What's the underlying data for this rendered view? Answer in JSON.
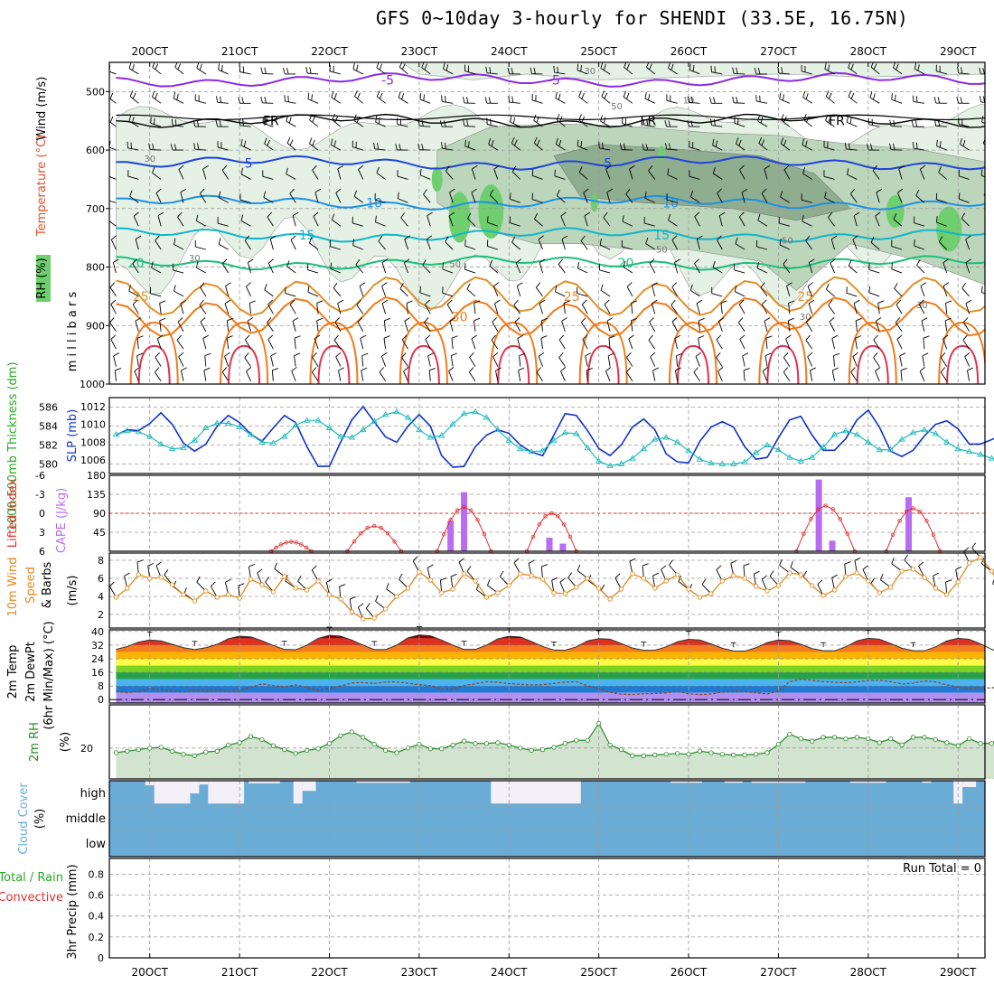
{
  "title": "GFS 0~10day 3-hourly for SHENDI (33.5E, 16.75N)",
  "colors": {
    "rh_light": "#e4f1e4",
    "rh_mid": "#bcd6bc",
    "rh_dark": "#8fae8f",
    "rh_bright": "#6fcf6f",
    "temp_m5": "#8a2be2",
    "temp_fr": "#000000",
    "temp_5": "#1f44d8",
    "temp_10": "#1e90e6",
    "temp_15": "#12b5c8",
    "temp_20": "#1bbf7a",
    "temp_25": "#e0902a",
    "temp_30": "#f07a1a",
    "temp_35": "#e0304a",
    "slp": "#1033c8",
    "thickness": "#22bbbb",
    "cape": "#b86cf0",
    "lifted": "#e03030",
    "wind_speed": "#e08a20",
    "rh2m": "#2a8a2a",
    "cloud": "#6aacd6",
    "precip_total": "#22aa22",
    "precip_conv": "#e03030"
  },
  "chart_data": [
    {
      "type": "heatmap",
      "name": "upper-air",
      "ylabel_parts": [
        "RH (%)",
        "Temperature (°C)",
        "Wind (m/s)"
      ],
      "yunit": "millibars",
      "y_ticks": [
        500,
        600,
        700,
        800,
        900,
        1000
      ],
      "ylim": [
        1000,
        450
      ],
      "x_ticks": [
        "20OCT",
        "21OCT",
        "22OCT",
        "23OCT",
        "24OCT",
        "25OCT",
        "26OCT",
        "27OCT",
        "28OCT",
        "29OCT"
      ],
      "xlim_days": [
        19.55,
        29.3
      ],
      "isotherms": [
        {
          "label": "-5",
          "level": 480
        },
        {
          "label": "FR",
          "level": 550
        },
        {
          "label": "5",
          "level": 622
        },
        {
          "label": "10",
          "level": 690
        },
        {
          "label": "15",
          "level": 745
        },
        {
          "label": "20",
          "level": 793
        },
        {
          "label": "25",
          "level": 850
        },
        {
          "label": "30",
          "level": 885
        }
      ],
      "rh_contour_labels": [
        "30",
        "50",
        "30",
        "30",
        "10",
        "50",
        "30",
        "50",
        "50",
        "30"
      ]
    },
    {
      "type": "line",
      "name": "slp-thickness",
      "ylabel_left": "1000-500mb Thickness (dm)",
      "ylabel_right": "SLP (mb)",
      "left_ticks": [
        580,
        582,
        584,
        586
      ],
      "left_lim": [
        579,
        587
      ],
      "right_ticks": [
        1006,
        1008,
        1010,
        1012
      ],
      "right_lim": [
        1004.5,
        1013
      ],
      "series": [
        {
          "name": "SLP (mb)",
          "values": [
            1008.8,
            1009.4,
            1009.3,
            1010.1,
            1011.3,
            1010.0,
            1007.9,
            1007.0,
            1007.8,
            1009.8,
            1011.0,
            1010.2,
            1008.9,
            1008.1,
            1009.6,
            1011.0,
            1010.2,
            1007.5,
            1005.3,
            1005.3,
            1008.0,
            1010.5,
            1012.0,
            1010.3,
            1008.6,
            1008.0,
            1009.8,
            1011.1,
            1009.8,
            1006.5,
            1005.2,
            1005.3,
            1007.5,
            1008.8,
            1009.4,
            1009.0,
            1007.7,
            1006.9,
            1006.5,
            1008.8,
            1011.2,
            1011.0,
            1009.3,
            1007.3,
            1006.5,
            1007.7,
            1009.7,
            1010.6,
            1009.4,
            1006.7,
            1005.8,
            1005.7,
            1008.1,
            1009.7,
            1010.3,
            1009.7,
            1007.5,
            1006.1,
            1006.3,
            1008.5,
            1010.5,
            1010.9,
            1008.8,
            1007.1,
            1007.1,
            1008.4,
            1010.5,
            1011.6,
            1009.7,
            1007.0,
            1006.4,
            1007.1,
            1008.7,
            1010.0,
            1010.4,
            1009.5,
            1007.8,
            1007.8,
            1008.3,
            1008.9
          ]
        },
        {
          "name": "1000-500mb Thickness (dm)",
          "values": [
            583.1,
            583.5,
            583.4,
            582.9,
            582.1,
            581.6,
            581.7,
            582.5,
            583.8,
            584.3,
            584.3,
            583.9,
            583.1,
            582.3,
            582.2,
            582.9,
            584.1,
            584.6,
            584.6,
            583.8,
            582.9,
            582.8,
            583.6,
            584.5,
            585.2,
            585.5,
            584.9,
            583.6,
            582.8,
            583.0,
            584.2,
            585.3,
            585.5,
            584.9,
            583.6,
            582.5,
            581.6,
            581.3,
            581.4,
            582.5,
            583.3,
            583.2,
            581.7,
            580.3,
            579.8,
            580.0,
            580.6,
            581.6,
            582.6,
            582.8,
            582.3,
            581.4,
            580.5,
            580.1,
            580.0,
            580.0,
            580.2,
            581.2,
            582.0,
            581.5,
            580.7,
            580.3,
            580.7,
            581.8,
            583.1,
            583.5,
            583.1,
            582.3,
            581.5,
            581.5,
            582.6,
            583.3,
            583.6,
            583.2,
            582.3,
            581.6,
            581.3,
            581.0,
            580.6,
            580.4
          ]
        }
      ]
    },
    {
      "type": "bar",
      "name": "cape-lifted-index",
      "ylabel_left": "Lifted Index",
      "ylabel_right": "CAPE (J/kg)",
      "left_ticks": [
        "-6",
        "-3",
        "0",
        "3",
        "6"
      ],
      "right_ticks": [
        45,
        90,
        135,
        180
      ],
      "cape_bars": [
        {
          "day": 23.35,
          "value": 72
        },
        {
          "day": 23.5,
          "value": 140
        },
        {
          "day": 24.45,
          "value": 32
        },
        {
          "day": 24.6,
          "value": 18
        },
        {
          "day": 27.45,
          "value": 170
        },
        {
          "day": 27.6,
          "value": 25
        },
        {
          "day": 28.45,
          "value": 128
        }
      ],
      "lifted_index_arcs": [
        {
          "start": 21.35,
          "end": 21.8,
          "peak": 4.5
        },
        {
          "start": 22.2,
          "end": 22.8,
          "peak": 2.0
        },
        {
          "start": 23.2,
          "end": 23.8,
          "peak": -1.0
        },
        {
          "start": 24.2,
          "end": 24.75,
          "peak": 0.0
        },
        {
          "start": 27.2,
          "end": 27.85,
          "peak": -1.2
        },
        {
          "start": 28.2,
          "end": 28.8,
          "peak": -0.8
        }
      ]
    },
    {
      "type": "line",
      "name": "wind-10m",
      "ylabel_parts": [
        "10m Wind",
        "Speed",
        "& Barbs",
        "(m/s)"
      ],
      "y_ticks": [
        2,
        4,
        6,
        8
      ],
      "ylim": [
        0.5,
        8.8
      ],
      "series": [
        {
          "name": "10m Wind Speed",
          "values": [
            3.9,
            4.9,
            6.4,
            6.0,
            6.1,
            5.3,
            4.2,
            3.5,
            4.6,
            3.9,
            4.2,
            3.8,
            5.9,
            5.3,
            4.5,
            6.2,
            4.9,
            4.7,
            5.7,
            4.2,
            3.7,
            2.3,
            1.5,
            1.6,
            2.6,
            4.0,
            4.9,
            6.7,
            5.8,
            4.4,
            4.8,
            6.5,
            5.7,
            3.9,
            4.4,
            5.2,
            6.5,
            6.3,
            5.9,
            4.4,
            4.3,
            5.0,
            6.0,
            4.9,
            3.7,
            4.8,
            6.5,
            6.0,
            4.9,
            5.7,
            6.4,
            4.8,
            3.9,
            4.3,
            5.7,
            6.3,
            6.0,
            5.1,
            4.6,
            5.2,
            6.6,
            6.4,
            5.2,
            4.1,
            4.7,
            6.2,
            6.6,
            5.7,
            4.4,
            5.0,
            6.8,
            7.0,
            6.1,
            4.9,
            4.2,
            5.6,
            7.7,
            8.3,
            6.8,
            4.6
          ]
        }
      ]
    },
    {
      "type": "area",
      "name": "temperature-2m",
      "ylabel_parts": [
        "2m Temp",
        "2m DewPt",
        "(6hr Min/Max) (°C)"
      ],
      "y_ticks": [
        0,
        8,
        16,
        24,
        32,
        40
      ],
      "ylim": [
        -2,
        41
      ],
      "temp_bands": [
        {
          "min": 36,
          "color": "#8b0000"
        },
        {
          "min": 32,
          "color": "#e0301e"
        },
        {
          "min": 28,
          "color": "#f47c20"
        },
        {
          "min": 24,
          "color": "#f7b500"
        },
        {
          "min": 20,
          "color": "#fff94a"
        },
        {
          "min": 16,
          "color": "#7ed321"
        },
        {
          "min": 12,
          "color": "#25a24a"
        },
        {
          "min": 8,
          "color": "#4bb3f0"
        },
        {
          "min": 4,
          "color": "#1f7ad4"
        },
        {
          "min": 0,
          "color": "#b28ff0"
        }
      ],
      "series": [
        {
          "name": "2m Temp",
          "values": [
            29.5,
            31.2,
            33.8,
            35.0,
            34.5,
            32.5,
            30.5,
            29.4,
            30.5,
            32.5,
            35.8,
            37.3,
            36.8,
            34.6,
            31.8,
            29.5,
            29.3,
            32.0,
            36.0,
            37.8,
            37.3,
            35.0,
            32.0,
            29.4,
            29.4,
            32.0,
            36.3,
            38.0,
            37.5,
            35.0,
            32.0,
            29.5,
            29.5,
            32.0,
            35.7,
            37.2,
            36.8,
            34.2,
            31.2,
            29.1,
            29.0,
            31.0,
            34.5,
            35.8,
            35.5,
            33.0,
            30.3,
            29.0,
            29.0,
            31.0,
            34.0,
            35.4,
            35.0,
            32.7,
            30.2,
            28.6,
            28.5,
            30.5,
            33.5,
            35.0,
            34.6,
            32.5,
            30.0,
            28.7,
            28.7,
            31.0,
            34.5,
            36.0,
            35.5,
            33.0,
            30.2,
            28.7,
            28.7,
            31.0,
            34.5,
            36.0,
            35.4,
            32.8,
            29.5,
            27.5
          ]
        },
        {
          "name": "2m DewPt",
          "values": [
            5.0,
            4.0,
            4.8,
            6.3,
            5.8,
            5.0,
            4.5,
            5.5,
            5.0,
            5.5,
            4.8,
            5.2,
            7.2,
            9.3,
            8.2,
            7.5,
            8.6,
            7.2,
            5.4,
            6.5,
            8.0,
            9.8,
            10.0,
            9.5,
            10.3,
            10.4,
            9.6,
            8.8,
            8.2,
            6.0,
            6.2,
            8.3,
            9.3,
            10.5,
            10.2,
            9.4,
            9.0,
            8.6,
            8.8,
            9.5,
            10.3,
            10.5,
            8.2,
            6.4,
            4.3,
            3.2,
            3.0,
            3.4,
            3.6,
            4.0,
            5.0,
            3.4,
            3.0,
            3.2,
            4.5,
            5.0,
            4.7,
            4.0,
            3.3,
            5.0,
            10.6,
            12.0,
            11.4,
            10.6,
            10.2,
            10.0,
            10.4,
            11.2,
            11.4,
            10.5,
            9.2,
            9.6,
            11.0,
            10.4,
            8.7,
            7.3,
            6.6,
            7.0,
            6.8,
            8.5
          ]
        }
      ]
    },
    {
      "type": "area",
      "name": "rh-2m",
      "ylabel_parts": [
        "2m RH",
        "(%)"
      ],
      "y_ticks": [
        20
      ],
      "ylim": [
        0,
        48
      ],
      "series": [
        {
          "name": "2m RH",
          "values": [
            17.0,
            18.0,
            19.0,
            20.0,
            20.5,
            18.0,
            16.0,
            15.0,
            17.5,
            18.0,
            22.0,
            23.5,
            27.5,
            25.5,
            21.5,
            19.0,
            16.5,
            18.5,
            19.5,
            23.0,
            28.0,
            30.5,
            27.0,
            22.5,
            18.5,
            17.0,
            20.0,
            22.5,
            19.5,
            19.5,
            22.0,
            24.5,
            23.0,
            23.0,
            23.5,
            22.0,
            20.0,
            18.5,
            19.0,
            20.5,
            23.0,
            25.0,
            25.0,
            36.0,
            22.0,
            19.0,
            15.0,
            15.0,
            15.5,
            16.0,
            16.5,
            16.0,
            18.0,
            17.0,
            16.0,
            15.5,
            15.5,
            16.0,
            17.0,
            22.5,
            29.0,
            26.0,
            24.5,
            27.0,
            27.0,
            26.0,
            27.0,
            26.0,
            23.5,
            26.0,
            22.0,
            27.0,
            27.0,
            25.5,
            23.5,
            21.5,
            26.0,
            23.0,
            23.0,
            27.5
          ]
        }
      ]
    },
    {
      "type": "area",
      "name": "cloud-cover",
      "ylabel_parts": [
        "Cloud Cover",
        "(%)"
      ],
      "y_ticks": [
        "high",
        "middle",
        "low"
      ],
      "gaps_high": [
        {
          "start": 19.95,
          "end": 20.05,
          "depth": 0.18
        },
        {
          "start": 20.05,
          "end": 20.45,
          "depth": 0.9
        },
        {
          "start": 20.45,
          "end": 20.55,
          "depth": 0.5
        },
        {
          "start": 20.55,
          "end": 20.65,
          "depth": 0.15
        },
        {
          "start": 20.65,
          "end": 21.05,
          "depth": 0.9
        },
        {
          "start": 21.1,
          "end": 21.45,
          "depth": 0.1
        },
        {
          "start": 21.6,
          "end": 21.7,
          "depth": 0.9
        },
        {
          "start": 21.7,
          "end": 21.85,
          "depth": 0.4
        },
        {
          "start": 22.3,
          "end": 22.9,
          "depth": 0.08
        },
        {
          "start": 23.8,
          "end": 24.8,
          "depth": 0.9
        },
        {
          "start": 25.8,
          "end": 26.15,
          "depth": 0.08
        },
        {
          "start": 26.4,
          "end": 26.6,
          "depth": 0.08
        },
        {
          "start": 26.7,
          "end": 27.3,
          "depth": 0.08
        },
        {
          "start": 27.8,
          "end": 28.2,
          "depth": 0.08
        },
        {
          "start": 28.6,
          "end": 28.7,
          "depth": 0.08
        },
        {
          "start": 28.95,
          "end": 29.05,
          "depth": 0.9
        },
        {
          "start": 29.05,
          "end": 29.2,
          "depth": 0.25
        }
      ]
    },
    {
      "type": "line",
      "name": "precip",
      "ylabel_left": "Total / Rain",
      "ylabel_conv": "Convective",
      "ylabel_right": "3hr Precip (mm)",
      "y_ticks": [
        "0",
        "0.2",
        "0.4",
        "0.6",
        "0.8"
      ],
      "ylim": [
        0,
        0.95
      ],
      "run_total": "Run Total = 0"
    }
  ]
}
